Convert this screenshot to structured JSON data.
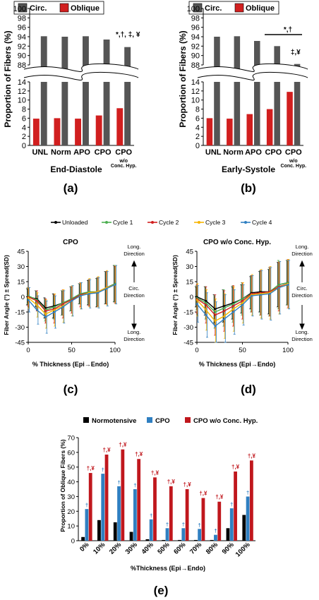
{
  "panels": {
    "a": {
      "label": "(a)",
      "title": "End-Diastole"
    },
    "b": {
      "label": "(b)",
      "title": "Early-Systole"
    },
    "c": {
      "label": "(c)",
      "title": "CPO"
    },
    "d": {
      "label": "(d)",
      "title": "CPO w/o Conc. Hyp."
    },
    "e": {
      "label": "(e)"
    }
  },
  "colors": {
    "circ": "#555555",
    "oblique": "#d11f1f",
    "unloaded": "#000000",
    "cycle1": "#4caf50",
    "cycle2": "#d11f1f",
    "cycle3": "#f7b500",
    "cycle4": "#2f7fc1",
    "normotensive": "#000000",
    "cpo": "#2f7fc1",
    "cpo_wo": "#c0171d"
  },
  "text": {
    "ab_ylabel": "Proportion of Fibers (%)",
    "b_bracket_sig": "*,†",
    "cd_legend": [
      "Unloaded",
      "Cycle 1",
      "Cycle 2",
      "Cycle 3",
      "Cycle 4"
    ],
    "cd_ylabel": "Fiber Angle (°) ± Spread(SD)",
    "cd_xlabel": "% Thickness (Epi→Endo)",
    "long_direction": "Long. Direction",
    "circ_direction": "Circ. Direction",
    "e_ylabel": "Proportion of Oblique Fibers (%)",
    "e_xlabel": "%Thickness (Epi→Endo)"
  },
  "chart_data": [
    {
      "type": "bar",
      "panel": "a",
      "categories": [
        "UNL",
        "Norm",
        "APO",
        "CPO",
        "CPO w/o Conc. Hyp."
      ],
      "series": [
        {
          "name": "Circ.",
          "values": [
            94.1,
            94.0,
            94.1,
            93.4,
            91.8
          ]
        },
        {
          "name": "Oblique",
          "values": [
            5.9,
            6.0,
            5.9,
            6.6,
            8.2
          ]
        }
      ],
      "annotations": [
        "",
        "",
        "",
        "",
        "*,†, ‡, ¥"
      ],
      "ylabel": "Proportion of Fibers (%)",
      "xlabel": "",
      "yticks_lower": [
        0,
        2,
        4,
        6,
        8,
        10,
        12,
        14
      ],
      "yticks_upper": [
        88,
        90,
        92,
        94,
        96,
        98,
        100
      ],
      "broken_axis": true,
      "legend": "top"
    },
    {
      "type": "bar",
      "panel": "b",
      "categories": [
        "UNL",
        "Norm",
        "APO",
        "CPO",
        "CPO w/o Conc. Hyp."
      ],
      "series": [
        {
          "name": "Circ.",
          "values": [
            94.0,
            94.1,
            93.1,
            92.0,
            88.2
          ]
        },
        {
          "name": "Oblique",
          "values": [
            6.0,
            5.9,
            6.9,
            8.0,
            11.8
          ]
        }
      ],
      "annotations": [
        "",
        "",
        "",
        "",
        "‡,¥"
      ],
      "ylabel": "Proportion of Fibers (%)",
      "xlabel": "",
      "yticks_lower": [
        0,
        2,
        4,
        6,
        8,
        10,
        12,
        14
      ],
      "yticks_upper": [
        88,
        90,
        92,
        94,
        96,
        98,
        100
      ],
      "broken_axis": true,
      "legend": "top"
    },
    {
      "type": "line",
      "panel": "c",
      "title": "CPO",
      "x": [
        0,
        10,
        20,
        30,
        40,
        50,
        60,
        70,
        80,
        90,
        100
      ],
      "series": [
        {
          "name": "Unloaded",
          "values": [
            0,
            -2,
            -11,
            -9,
            -6,
            -2,
            3,
            4,
            4,
            9,
            13
          ],
          "sd": [
            8,
            8,
            10,
            12,
            12,
            12,
            10,
            12,
            14,
            16,
            18
          ]
        },
        {
          "name": "Cycle 1",
          "values": [
            1,
            -3,
            -13,
            -10,
            -6,
            -2,
            3,
            5,
            5,
            9,
            13
          ],
          "sd": [
            8,
            9,
            11,
            12,
            12,
            12,
            10,
            12,
            14,
            16,
            18
          ]
        },
        {
          "name": "Cycle 2",
          "values": [
            0,
            -4,
            -14,
            -12,
            -7,
            -3,
            2,
            4,
            5,
            9,
            12
          ],
          "sd": [
            9,
            10,
            12,
            14,
            14,
            13,
            12,
            13,
            14,
            16,
            18
          ]
        },
        {
          "name": "Cycle 3",
          "values": [
            -1,
            -8,
            -17,
            -13,
            -9,
            -4,
            1,
            4,
            5,
            9,
            12
          ],
          "sd": [
            10,
            12,
            14,
            16,
            16,
            15,
            13,
            14,
            15,
            17,
            19
          ]
        },
        {
          "name": "Cycle 4",
          "values": [
            -3,
            -13,
            -20,
            -15,
            -10,
            -4,
            1,
            3,
            4,
            8,
            12
          ],
          "sd": [
            12,
            14,
            16,
            16,
            16,
            15,
            13,
            14,
            15,
            17,
            19
          ]
        }
      ],
      "ylim": [
        -45,
        45
      ],
      "yticks": [
        -45,
        -30,
        -15,
        0,
        15,
        30,
        45
      ],
      "xticks": [
        0,
        50,
        100
      ],
      "ylabel": "Fiber Angle (°) ± Spread(SD)",
      "xlabel": "% Thickness (Epi→Endo)",
      "legend": "top"
    },
    {
      "type": "line",
      "panel": "d",
      "title": "CPO w/o Conc. Hyp.",
      "x": [
        0,
        10,
        20,
        30,
        40,
        50,
        60,
        70,
        80,
        90,
        100
      ],
      "series": [
        {
          "name": "Unloaded",
          "values": [
            0,
            -4,
            -12,
            -9,
            -6,
            -2,
            4,
            5,
            5,
            12,
            14
          ],
          "sd": [
            10,
            14,
            14,
            16,
            16,
            14,
            16,
            20,
            22,
            22,
            22
          ]
        },
        {
          "name": "Cycle 1",
          "values": [
            -1,
            -6,
            -15,
            -11,
            -7,
            -2,
            3,
            4,
            5,
            12,
            14
          ],
          "sd": [
            12,
            16,
            16,
            18,
            18,
            16,
            18,
            22,
            24,
            24,
            22
          ]
        },
        {
          "name": "Cycle 2",
          "values": [
            -2,
            -8,
            -18,
            -14,
            -9,
            -4,
            3,
            4,
            5,
            10,
            13
          ],
          "sd": [
            14,
            18,
            20,
            20,
            20,
            18,
            18,
            22,
            24,
            24,
            24
          ]
        },
        {
          "name": "Cycle 3",
          "values": [
            -3,
            -13,
            -24,
            -19,
            -12,
            -6,
            2,
            3,
            4,
            9,
            13
          ],
          "sd": [
            16,
            20,
            22,
            22,
            22,
            20,
            20,
            24,
            26,
            26,
            24
          ]
        },
        {
          "name": "Cycle 4",
          "values": [
            -7,
            -18,
            -29,
            -22,
            -15,
            -8,
            1,
            2,
            3,
            9,
            12
          ],
          "sd": [
            18,
            22,
            24,
            24,
            22,
            20,
            20,
            24,
            26,
            26,
            24
          ]
        }
      ],
      "ylim": [
        -45,
        45
      ],
      "yticks": [
        -45,
        -30,
        -15,
        0,
        15,
        30,
        45
      ],
      "xticks": [
        0,
        50,
        100
      ],
      "ylabel": "Fiber Angle (°) ± Spread(SD)",
      "xlabel": "% Thickness (Epi→Endo)",
      "legend": "top"
    },
    {
      "type": "bar",
      "panel": "e",
      "categories": [
        "0%",
        "10%",
        "20%",
        "30%",
        "40%",
        "50%",
        "60%",
        "70%",
        "80%",
        "90%",
        "100%"
      ],
      "series": [
        {
          "name": "Normotensive",
          "values": [
            2.5,
            14.0,
            12.5,
            6.0,
            1.0,
            0.5,
            0.5,
            0.5,
            0.5,
            8.5,
            17.5
          ]
        },
        {
          "name": "CPO",
          "values": [
            21.5,
            45.5,
            37.0,
            35.0,
            14.5,
            8.5,
            8.5,
            8.0,
            4.0,
            22.0,
            30.0
          ]
        },
        {
          "name": "CPO w/o Conc. Hyp.",
          "values": [
            46.0,
            58.5,
            62.0,
            55.5,
            43.0,
            37.0,
            35.0,
            29.0,
            26.5,
            47.0,
            54.5
          ]
        }
      ],
      "cpo_annotation": "†",
      "cpo_wo_annotation": "†,¥",
      "ylim": [
        0,
        70
      ],
      "yticks": [
        0,
        10,
        20,
        30,
        40,
        50,
        60,
        70
      ],
      "ylabel": "Proportion of Oblique Fibers (%)",
      "xlabel": "%Thickness (Epi→Endo)",
      "legend": "top"
    }
  ]
}
